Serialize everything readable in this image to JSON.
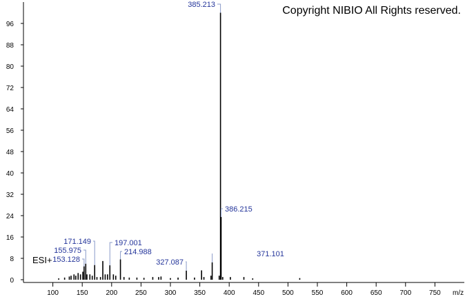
{
  "chart_data": {
    "type": "spectrum",
    "copyright": "Copyright NIBIO All Rights reserved.",
    "annotation": "ESI+",
    "x_label": "m/z",
    "xlim": [
      50,
      800
    ],
    "xticks": [
      100,
      150,
      200,
      250,
      300,
      350,
      400,
      450,
      500,
      550,
      600,
      650,
      700,
      750
    ],
    "ylim": [
      0,
      104
    ],
    "yticks": [
      0,
      8,
      16,
      24,
      32,
      40,
      48,
      56,
      64,
      72,
      80,
      88,
      96
    ],
    "color": "#000000",
    "label_color": "#23349a",
    "peaks": {
      "x": [
        153.128,
        155.975,
        171.149,
        197.001,
        214.988,
        327.087,
        371.101,
        385.213,
        386.215
      ],
      "values": [
        5,
        6,
        5.5,
        5.4,
        7.6,
        3.4,
        6.5,
        100,
        23.5
      ]
    },
    "other_peaks": {
      "x": [
        110,
        120,
        128,
        131,
        136,
        139,
        143,
        147,
        151,
        158,
        163,
        167,
        175,
        181,
        185,
        189,
        193,
        203,
        207,
        221,
        230,
        243,
        255,
        270,
        280,
        284,
        300,
        313,
        341,
        353,
        357,
        369,
        383,
        389,
        402,
        425,
        440,
        520
      ],
      "values": [
        0.5,
        0.8,
        1.2,
        1.5,
        2,
        1.5,
        2.5,
        2,
        3,
        2,
        2,
        1.5,
        1,
        1,
        7,
        2,
        2,
        2,
        1.5,
        1,
        0.8,
        0.8,
        0.7,
        1,
        1,
        1.2,
        0.6,
        0.8,
        0.8,
        3.5,
        1,
        1.5,
        1.5,
        1,
        1,
        1,
        0.5,
        0.6
      ]
    }
  }
}
